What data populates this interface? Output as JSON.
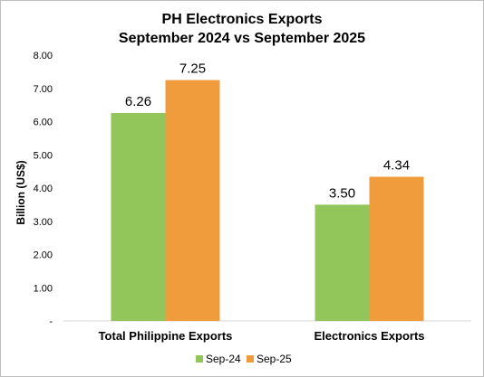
{
  "chart_data": {
    "type": "bar",
    "title": "PH Electronics Exports",
    "subtitle": "September 2024 vs September 2025",
    "ylabel": "Billion (US$)",
    "xlabel": "",
    "categories": [
      "Total Philippine Exports",
      "Electronics Exports"
    ],
    "series": [
      {
        "name": "Sep-24",
        "values": [
          6.26,
          3.5
        ],
        "labels": [
          "6.26",
          "3.50"
        ],
        "color": "#92c55a"
      },
      {
        "name": "Sep-25",
        "values": [
          7.25,
          4.34
        ],
        "labels": [
          "7.25",
          "4.34"
        ],
        "color": "#f09c3d"
      }
    ],
    "ylim": [
      0,
      8
    ],
    "yticks": [
      0,
      1,
      2,
      3,
      4,
      5,
      6,
      7,
      8
    ],
    "ytick_labels": [
      "-",
      "1.00",
      "2.00",
      "3.00",
      "4.00",
      "5.00",
      "6.00",
      "7.00",
      "8.00"
    ],
    "grid": false,
    "legend": "bottom"
  }
}
